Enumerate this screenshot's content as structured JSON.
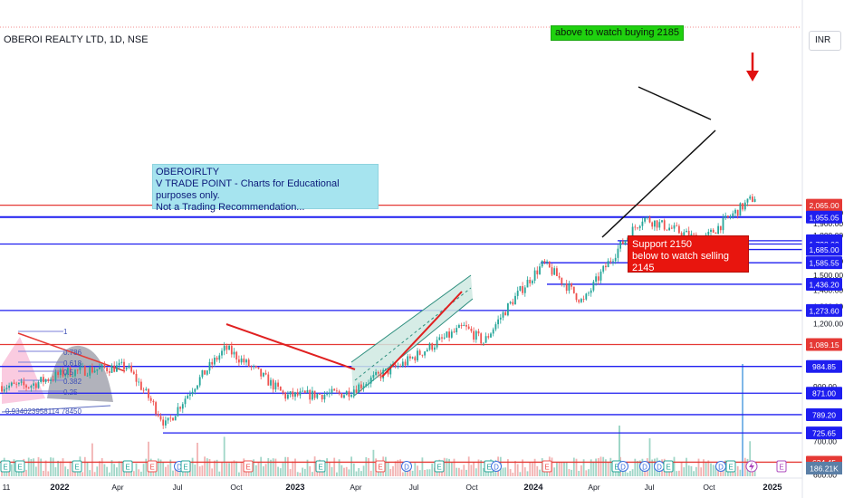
{
  "header": {
    "symbol": "OBEROI REALTY LTD, 1D, NSE",
    "currency": "INR"
  },
  "notes": {
    "educational": [
      "OBEROIRLTY",
      "V TRADE POINT - Charts for Educational purposes only.",
      "Not a Trading Recommendation..."
    ],
    "support": [
      "Support 2150",
      "below to watch selling 2145"
    ],
    "buy": "above to watch buying 2185"
  },
  "colors": {
    "up": "#26a69a",
    "down": "#ef5350",
    "blue_line": "#1e1ef0",
    "red_line": "#e53935",
    "trend": "#e02020",
    "volume_up": "#9fd6c7",
    "volume_down": "#f2b2b2"
  },
  "chart_data": {
    "type": "candlestick",
    "instrument": "OBEROI REALTY LTD",
    "interval": "1D",
    "exchange": "NSE",
    "currency": "INR",
    "y_axis_ticks": [
      "2,000.00",
      "1,900.00",
      "1,800.00",
      "1,600.00",
      "1,500.00",
      "1,400.00",
      "1,300.00",
      "1,200.00",
      "900.00",
      "800.00",
      "700.00",
      "600.00"
    ],
    "x_axis_ticks": [
      "11",
      "2022",
      "Apr",
      "Jul",
      "Oct",
      "2023",
      "Apr",
      "Jul",
      "Oct",
      "2024",
      "Apr",
      "Jul",
      "Oct",
      "2025"
    ],
    "horizontal_levels": [
      {
        "label": "2,065.00",
        "value": 2065,
        "color": "red"
      },
      {
        "label": "1,955.05",
        "value": 1955.05,
        "color": "blue"
      },
      {
        "label": "1,754.30",
        "value": 1754.3,
        "color": "blue"
      },
      {
        "label": "1,728.00",
        "value": 1728,
        "color": "blue"
      },
      {
        "label": "1,685.00",
        "value": 1685,
        "color": "blue"
      },
      {
        "label": "1,585.55",
        "value": 1585.55,
        "color": "blue"
      },
      {
        "label": "1,436.20",
        "value": 1436.2,
        "color": "blue"
      },
      {
        "label": "1,273.60",
        "value": 1273.6,
        "color": "blue"
      },
      {
        "label": "1,089.15",
        "value": 1089.15,
        "color": "red"
      },
      {
        "label": "984.85",
        "value": 984.85,
        "color": "blue"
      },
      {
        "label": "871.00",
        "value": 871,
        "color": "blue"
      },
      {
        "label": "789.20",
        "value": 789.2,
        "color": "blue"
      },
      {
        "label": "725.65",
        "value": 725.65,
        "color": "blue"
      },
      {
        "label": "634.45",
        "value": 634.45,
        "color": "red"
      }
    ],
    "volume_label": "186.21K",
    "fib_labels": [
      "1",
      "0.786",
      "0.618",
      "0.5",
      "0.382",
      "0.25",
      "0.934023958114 78450"
    ],
    "series": [
      {
        "period": "2022 Jan",
        "close": 960
      },
      {
        "period": "2022 Apr",
        "close": 985
      },
      {
        "period": "2022 Jun",
        "close": 750
      },
      {
        "period": "2022 Sep",
        "close": 1070
      },
      {
        "period": "2022 Dec",
        "close": 860
      },
      {
        "period": "2023 Mar",
        "close": 870
      },
      {
        "period": "2023 Jun",
        "close": 1000
      },
      {
        "period": "2023 Sep",
        "close": 1180
      },
      {
        "period": "2023 Oct",
        "close": 1100
      },
      {
        "period": "2024 Jan",
        "close": 1580
      },
      {
        "period": "2024 Mar",
        "close": 1320
      },
      {
        "period": "2024 Jun",
        "close": 1950
      },
      {
        "period": "2024 Sep",
        "close": 1750
      },
      {
        "period": "2024 Nov",
        "close": 2050
      },
      {
        "period": "2024 Dec",
        "close": 2200
      }
    ]
  }
}
